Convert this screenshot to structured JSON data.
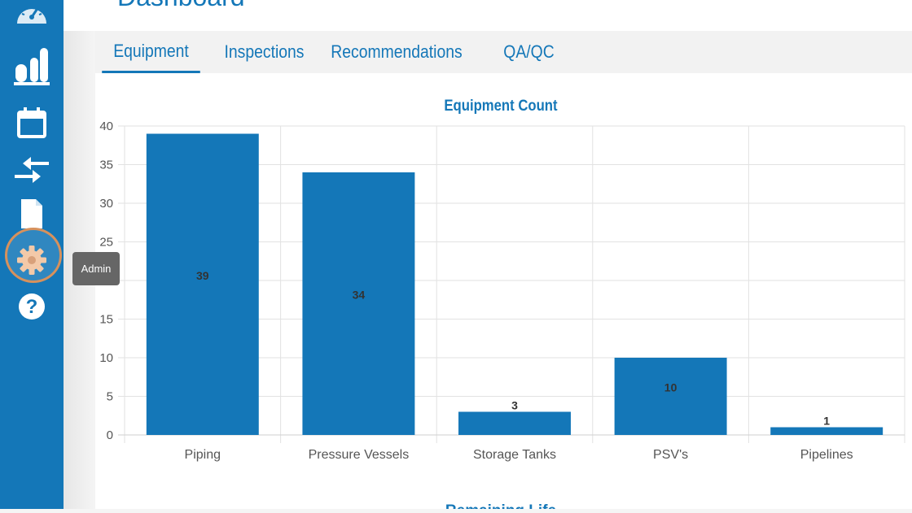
{
  "page": {
    "title": "Dashboard"
  },
  "sidebar": {
    "items": [
      {
        "id": "dashboard",
        "icon": "gauge-icon"
      },
      {
        "id": "equipment",
        "icon": "tanks-icon"
      },
      {
        "id": "calendar",
        "icon": "calendar-icon"
      },
      {
        "id": "transfer",
        "icon": "arrows-exchange-icon"
      },
      {
        "id": "documents",
        "icon": "document-icon"
      },
      {
        "id": "admin",
        "icon": "gear-icon",
        "tooltip": "Admin"
      },
      {
        "id": "help",
        "icon": "help-icon"
      }
    ]
  },
  "tabs": [
    {
      "label": "Equipment",
      "active": true
    },
    {
      "label": "Inspections",
      "active": false
    },
    {
      "label": "Recommendations",
      "active": false
    },
    {
      "label": "QA/QC",
      "active": false
    }
  ],
  "colors": {
    "accent": "#1477b8",
    "sidebar": "#1477b8",
    "highlight_ring": "#d7915c"
  },
  "chart_data": {
    "type": "bar",
    "title": "Equipment Count",
    "categories": [
      "Piping",
      "Pressure Vessels",
      "Storage Tanks",
      "PSV's",
      "Pipelines"
    ],
    "values": [
      39,
      34,
      3,
      10,
      1
    ],
    "ylim": [
      0,
      40
    ],
    "yticks": [
      0,
      5,
      10,
      15,
      20,
      25,
      30,
      35,
      40
    ],
    "grid": true,
    "bar_color": "#1477b8"
  },
  "next_chart": {
    "title": "Remaining Life"
  }
}
